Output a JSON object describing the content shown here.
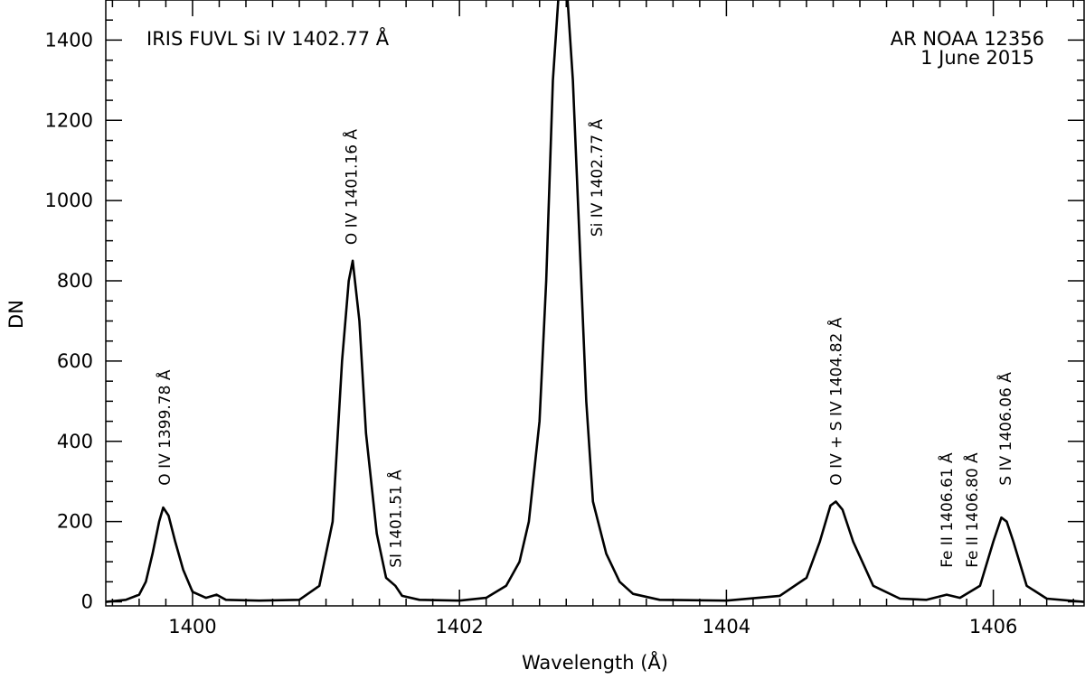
{
  "chart_data": {
    "type": "line",
    "xlabel": "Wavelength (Å)",
    "ylabel": "DN",
    "xlim": [
      1399.35,
      1406.68
    ],
    "ylim": [
      -10,
      1500
    ],
    "xticks": [
      1400,
      1402,
      1404,
      1406
    ],
    "yticks": [
      0,
      200,
      400,
      600,
      800,
      1000,
      1200,
      1400
    ],
    "grid": false,
    "annotations_top_left": [
      "IRIS FUVL Si IV 1402.77 Å"
    ],
    "annotations_top_right": [
      "AR NOAA 12356",
      "1 June 2015"
    ],
    "line_labels": [
      {
        "text": "O IV 1399.78 Å",
        "x": 1399.79,
        "y": 290
      },
      {
        "text": "O IV 1401.16 Å",
        "x": 1401.19,
        "y": 890
      },
      {
        "text": "SI 1401.51 Å",
        "x": 1401.52,
        "y": 85
      },
      {
        "text": "Si IV 1402.77 Å",
        "x": 1403.03,
        "y": 910
      },
      {
        "text": "O IV + S IV 1404.82 Å",
        "x": 1404.82,
        "y": 290
      },
      {
        "text": "Fe II 1406.61 Å",
        "x": 1405.65,
        "y": 85
      },
      {
        "text": "Fe II 1406.80 Å",
        "x": 1405.84,
        "y": 85
      },
      {
        "text": "S IV 1406.06 Å",
        "x": 1406.09,
        "y": 290
      }
    ],
    "series": [
      {
        "x": [
          1399.35,
          1399.5,
          1399.6,
          1399.65,
          1399.7,
          1399.75,
          1399.78,
          1399.82,
          1399.87,
          1399.93,
          1400.0,
          1400.1,
          1400.18,
          1400.25,
          1400.5,
          1400.8,
          1400.95,
          1401.05,
          1401.12,
          1401.17,
          1401.2,
          1401.25,
          1401.3,
          1401.38,
          1401.45,
          1401.52,
          1401.57,
          1401.7,
          1402.0,
          1402.2,
          1402.35,
          1402.45,
          1402.52,
          1402.6,
          1402.65,
          1402.7,
          1402.75,
          1402.8,
          1402.85,
          1402.9,
          1402.95,
          1403.0,
          1403.1,
          1403.2,
          1403.3,
          1403.5,
          1404.0,
          1404.4,
          1404.6,
          1404.7,
          1404.78,
          1404.82,
          1404.87,
          1404.95,
          1405.1,
          1405.3,
          1405.5,
          1405.65,
          1405.75,
          1405.9,
          1406.0,
          1406.06,
          1406.1,
          1406.15,
          1406.25,
          1406.4,
          1406.68
        ],
        "y": [
          0,
          5,
          18,
          50,
          120,
          200,
          235,
          215,
          150,
          80,
          25,
          10,
          18,
          5,
          3,
          5,
          40,
          200,
          600,
          800,
          850,
          700,
          420,
          170,
          60,
          40,
          15,
          5,
          3,
          10,
          40,
          100,
          200,
          450,
          800,
          1300,
          1550,
          1550,
          1300,
          900,
          500,
          250,
          120,
          50,
          20,
          5,
          3,
          15,
          60,
          150,
          240,
          250,
          230,
          150,
          40,
          8,
          5,
          18,
          10,
          40,
          150,
          210,
          200,
          150,
          40,
          8,
          0
        ]
      }
    ]
  }
}
